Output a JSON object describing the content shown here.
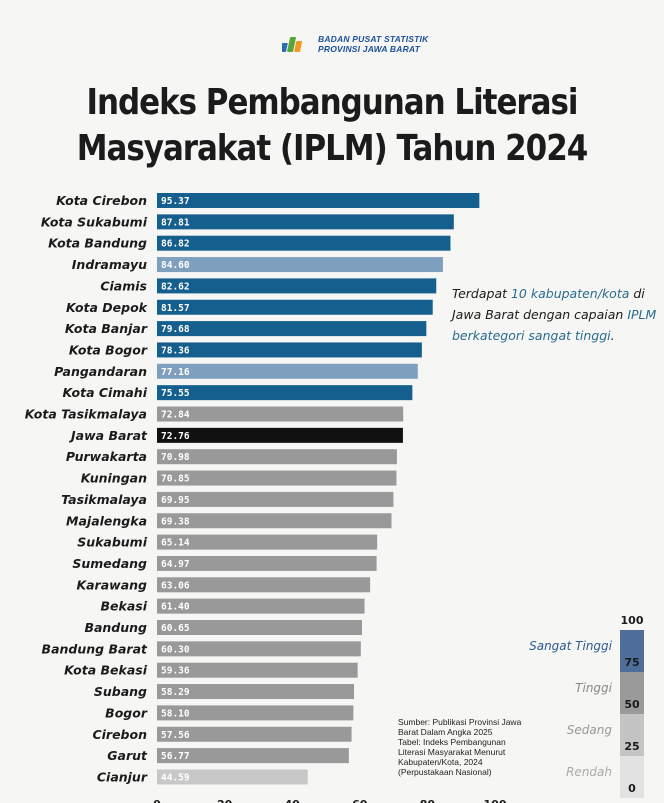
{
  "header": {
    "org_line1": "BADAN PUSAT STATISTIK",
    "org_line2": "PROVINSI JAWA BARAT"
  },
  "title_line1": "Indeks Pembangunan Literasi",
  "title_line2": "Masyarakat (IPLM) Tahun 2024",
  "annotation": {
    "part1": "Terdapat ",
    "highlight1": "10 kabupaten/kota",
    "part2": " di Jawa Barat dengan capaian ",
    "highlight2": "IPLM berkategori sangat tinggi",
    "part3": "."
  },
  "source": {
    "line1": "Sumber: Publikasi Provinsi Jawa",
    "line2": "Barat Dalam Angka 2025",
    "line3": "Tabel: Indeks Pembangunan",
    "line4": "Literasi Masyarakat Menurut",
    "line5": "Kabupaten/Kota, 2024",
    "line6": "(Perpustakaan Nasional)"
  },
  "legend": {
    "levels": [
      {
        "label": "Sangat Tinggi",
        "value": 75,
        "color": "#4e6e99",
        "text_color": "#2b5b8f"
      },
      {
        "label": "Tinggi",
        "value": 50,
        "color": "#9a9a9a",
        "text_color": "#888888"
      },
      {
        "label": "Sedang",
        "value": 25,
        "color": "#c4c4c4",
        "text_color": "#999999"
      },
      {
        "label": "Rendah",
        "value": 0,
        "color": "#e2e2e2",
        "text_color": "#aaaaaa"
      }
    ],
    "top_value": 100
  },
  "colors": {
    "dark_blue": "#145f8d",
    "light_blue": "#7f9fbf",
    "gray": "#999999",
    "light_gray": "#c8c8c8",
    "black": "#111111"
  },
  "chart_data": {
    "type": "bar",
    "orientation": "horizontal",
    "categories": [
      "Kota Cirebon",
      "Kota Sukabumi",
      "Kota Bandung",
      "Indramayu",
      "Ciamis",
      "Kota Depok",
      "Kota Banjar",
      "Kota Bogor",
      "Pangandaran",
      "Kota Cimahi",
      "Kota Tasikmalaya",
      "Jawa Barat",
      "Purwakarta",
      "Kuningan",
      "Tasikmalaya",
      "Majalengka",
      "Sukabumi",
      "Sumedang",
      "Karawang",
      "Bekasi",
      "Bandung",
      "Bandung Barat",
      "Kota Bekasi",
      "Subang",
      "Bogor",
      "Cirebon",
      "Garut",
      "Cianjur"
    ],
    "values": [
      95.37,
      87.81,
      86.82,
      84.6,
      82.62,
      81.57,
      79.68,
      78.36,
      77.16,
      75.55,
      72.84,
      72.76,
      70.98,
      70.85,
      69.95,
      69.38,
      65.14,
      64.97,
      63.06,
      61.4,
      60.65,
      60.3,
      59.36,
      58.29,
      58.1,
      57.56,
      56.77,
      44.59
    ],
    "value_labels": [
      "95.37",
      "87.81",
      "86.82",
      "84.60",
      "82.62",
      "81.57",
      "79.68",
      "78.36",
      "77.16",
      "75.55",
      "72.84",
      "72.76",
      "70.98",
      "70.85",
      "69.95",
      "69.38",
      "65.14",
      "64.97",
      "63.06",
      "61.40",
      "60.65",
      "60.30",
      "59.36",
      "58.29",
      "58.10",
      "57.56",
      "56.77",
      "44.59"
    ],
    "bar_colors": [
      "dark_blue",
      "dark_blue",
      "dark_blue",
      "light_blue",
      "dark_blue",
      "dark_blue",
      "dark_blue",
      "dark_blue",
      "light_blue",
      "dark_blue",
      "gray",
      "black",
      "gray",
      "gray",
      "gray",
      "gray",
      "gray",
      "gray",
      "gray",
      "gray",
      "gray",
      "gray",
      "gray",
      "gray",
      "gray",
      "gray",
      "gray",
      "light_gray"
    ],
    "xlim": [
      0,
      100
    ],
    "xticks": [
      "0",
      "20",
      "40",
      "60",
      "80",
      "100"
    ],
    "grid": false,
    "title": "Indeks Pembangunan Literasi Masyarakat (IPLM) Tahun 2024"
  }
}
